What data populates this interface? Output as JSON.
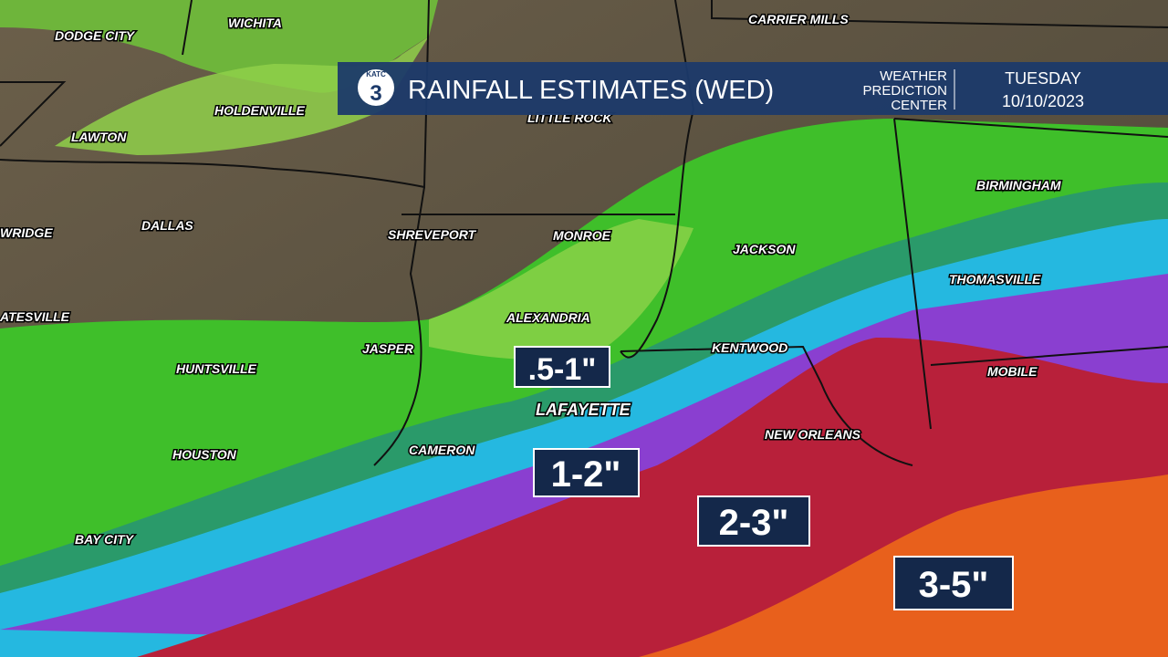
{
  "header": {
    "logo": "KATC",
    "title": "RAINFALL ESTIMATES (WED)",
    "source": [
      "WEATHER",
      "PREDICTION",
      "CENTER"
    ],
    "date": [
      "TUESDAY",
      "10/10/2023"
    ]
  },
  "cities": [
    "DODGE CITY",
    "WICHITA",
    "CARRIER MILLS",
    "HOLDENVILLE",
    "LITTLE ROCK",
    "LAWTON",
    "BIRMINGHAM",
    "WRIDGE",
    "DALLAS",
    "SHREVEPORT",
    "MONROE",
    "JACKSON",
    "THOMASVILLE",
    "ATESVILLE",
    "ALEXANDRIA",
    "JASPER",
    "KENTWOOD",
    "HUNTSVILLE",
    "MOBILE",
    "LAFAYETTE",
    "NEW ORLEANS",
    "HOUSTON",
    "CAMERON",
    "BAY CITY"
  ],
  "rain_labels": [
    ".5-1\"",
    "1-2\"",
    "2-3\"",
    "3-5\""
  ]
}
